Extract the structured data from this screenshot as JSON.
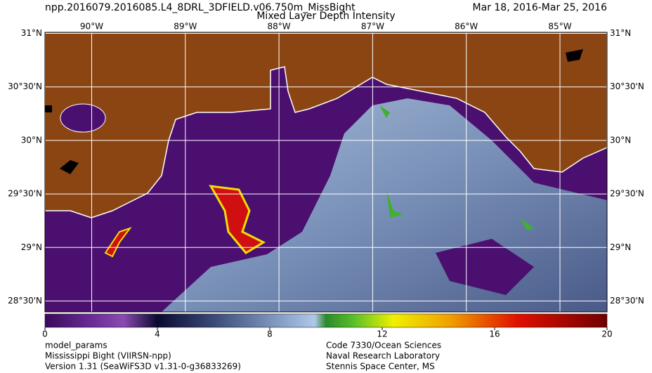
{
  "header": {
    "filename": "npp.2016079.2016085.L4_8DRL_3DFIELD.v06.750m_MissBight",
    "title": "Mixed Layer Depth Intensity",
    "date_range": "Mar 18, 2016-Mar 25, 2016"
  },
  "map": {
    "lon_labels": [
      "90°W",
      "89°W",
      "88°W",
      "87°W",
      "86°W",
      "85°W"
    ],
    "lat_labels": [
      "31°N",
      "30°30'N",
      "30°N",
      "29°30'N",
      "29°N",
      "28°30'N"
    ]
  },
  "colorbar": {
    "range": [
      0,
      20
    ],
    "ticks": [
      0,
      4,
      8,
      12,
      16,
      20
    ]
  },
  "footer": {
    "left": [
      "model_params",
      "Mississippi Bight (VIIRSN-npp)",
      "Version 1.31 (SeaWiFS3D v1.31-0-g36833269)"
    ],
    "right": [
      "Code 7330/Ocean Sciences",
      "Naval Research Laboratory",
      "Stennis Space Center, MS"
    ]
  }
}
